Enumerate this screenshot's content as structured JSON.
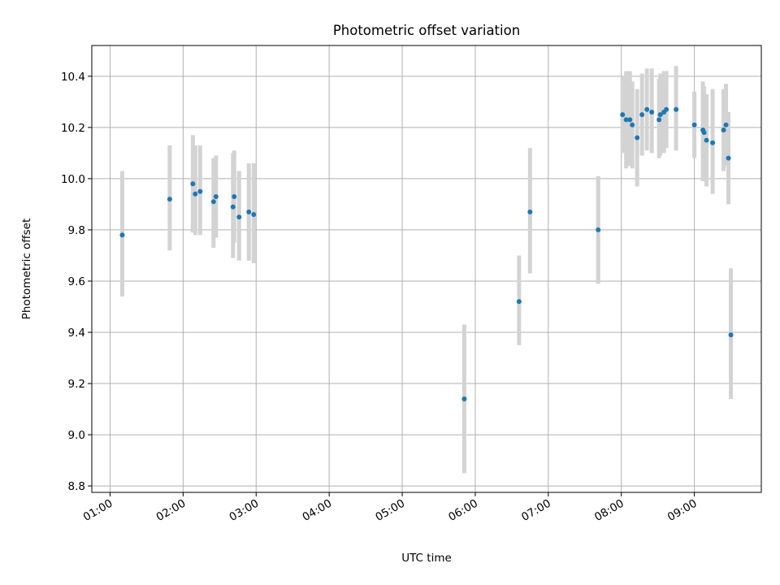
{
  "chart_data": {
    "type": "scatter",
    "title": "Photometric offset variation",
    "xlabel": "UTC time",
    "ylabel": "Photometric offset",
    "grid": true,
    "xlim": [
      "00:45",
      "09:55"
    ],
    "ylim": [
      8.775,
      10.52
    ],
    "x_ticks": [
      "01:00",
      "02:00",
      "03:00",
      "04:00",
      "05:00",
      "06:00",
      "07:00",
      "08:00",
      "09:00"
    ],
    "y_ticks": [
      8.8,
      9.0,
      9.2,
      9.4,
      9.6,
      9.8,
      10.0,
      10.2,
      10.4
    ],
    "y_tick_labels": [
      "8.8",
      "9.0",
      "9.2",
      "9.4",
      "9.6",
      "9.8",
      "10.0",
      "10.2",
      "10.4"
    ],
    "colors": {
      "point": "#1f77b4",
      "error_bar": "#d3d3d3"
    },
    "points": [
      {
        "x": "01:10",
        "y": 9.78,
        "lo": 9.54,
        "hi": 10.03
      },
      {
        "x": "01:49",
        "y": 9.92,
        "lo": 9.72,
        "hi": 10.13
      },
      {
        "x": "02:08",
        "y": 9.98,
        "lo": 9.79,
        "hi": 10.17
      },
      {
        "x": "02:10",
        "y": 9.94,
        "lo": 9.78,
        "hi": 10.13
      },
      {
        "x": "02:14",
        "y": 9.95,
        "lo": 9.78,
        "hi": 10.13
      },
      {
        "x": "02:25",
        "y": 9.91,
        "lo": 9.73,
        "hi": 10.08
      },
      {
        "x": "02:27",
        "y": 9.93,
        "lo": 9.77,
        "hi": 10.09
      },
      {
        "x": "02:41",
        "y": 9.89,
        "lo": 9.69,
        "hi": 10.1
      },
      {
        "x": "02:42",
        "y": 9.93,
        "lo": 9.75,
        "hi": 10.11
      },
      {
        "x": "02:46",
        "y": 9.85,
        "lo": 9.68,
        "hi": 10.03
      },
      {
        "x": "02:54",
        "y": 9.87,
        "lo": 9.68,
        "hi": 10.06
      },
      {
        "x": "02:58",
        "y": 9.86,
        "lo": 9.67,
        "hi": 10.06
      },
      {
        "x": "05:51",
        "y": 9.14,
        "lo": 8.85,
        "hi": 9.43
      },
      {
        "x": "06:36",
        "y": 9.52,
        "lo": 9.35,
        "hi": 9.7
      },
      {
        "x": "06:45",
        "y": 9.87,
        "lo": 9.63,
        "hi": 10.12
      },
      {
        "x": "07:41",
        "y": 9.8,
        "lo": 9.59,
        "hi": 10.01
      },
      {
        "x": "08:01",
        "y": 10.25,
        "lo": 10.1,
        "hi": 10.4
      },
      {
        "x": "08:04",
        "y": 10.23,
        "lo": 10.04,
        "hi": 10.42
      },
      {
        "x": "08:07",
        "y": 10.23,
        "lo": 10.05,
        "hi": 10.42
      },
      {
        "x": "08:09",
        "y": 10.21,
        "lo": 10.04,
        "hi": 10.38
      },
      {
        "x": "08:13",
        "y": 10.16,
        "lo": 9.97,
        "hi": 10.35
      },
      {
        "x": "08:17",
        "y": 10.25,
        "lo": 10.09,
        "hi": 10.41
      },
      {
        "x": "08:21",
        "y": 10.27,
        "lo": 10.11,
        "hi": 10.43
      },
      {
        "x": "08:25",
        "y": 10.26,
        "lo": 10.1,
        "hi": 10.43
      },
      {
        "x": "08:31",
        "y": 10.23,
        "lo": 10.08,
        "hi": 10.39
      },
      {
        "x": "08:32",
        "y": 10.25,
        "lo": 10.09,
        "hi": 10.41
      },
      {
        "x": "08:35",
        "y": 10.26,
        "lo": 10.1,
        "hi": 10.42
      },
      {
        "x": "08:37",
        "y": 10.27,
        "lo": 10.12,
        "hi": 10.42
      },
      {
        "x": "08:45",
        "y": 10.27,
        "lo": 10.11,
        "hi": 10.44
      },
      {
        "x": "09:00",
        "y": 10.21,
        "lo": 10.08,
        "hi": 10.34
      },
      {
        "x": "09:07",
        "y": 10.19,
        "lo": 9.99,
        "hi": 10.38
      },
      {
        "x": "09:08",
        "y": 10.18,
        "lo": 10.0,
        "hi": 10.36
      },
      {
        "x": "09:10",
        "y": 10.15,
        "lo": 9.97,
        "hi": 10.33
      },
      {
        "x": "09:15",
        "y": 10.14,
        "lo": 9.94,
        "hi": 10.35
      },
      {
        "x": "09:24",
        "y": 10.19,
        "lo": 10.03,
        "hi": 10.35
      },
      {
        "x": "09:26",
        "y": 10.21,
        "lo": 10.05,
        "hi": 10.37
      },
      {
        "x": "09:28",
        "y": 10.08,
        "lo": 9.9,
        "hi": 10.26
      },
      {
        "x": "09:30",
        "y": 9.39,
        "lo": 9.14,
        "hi": 9.65
      }
    ]
  }
}
